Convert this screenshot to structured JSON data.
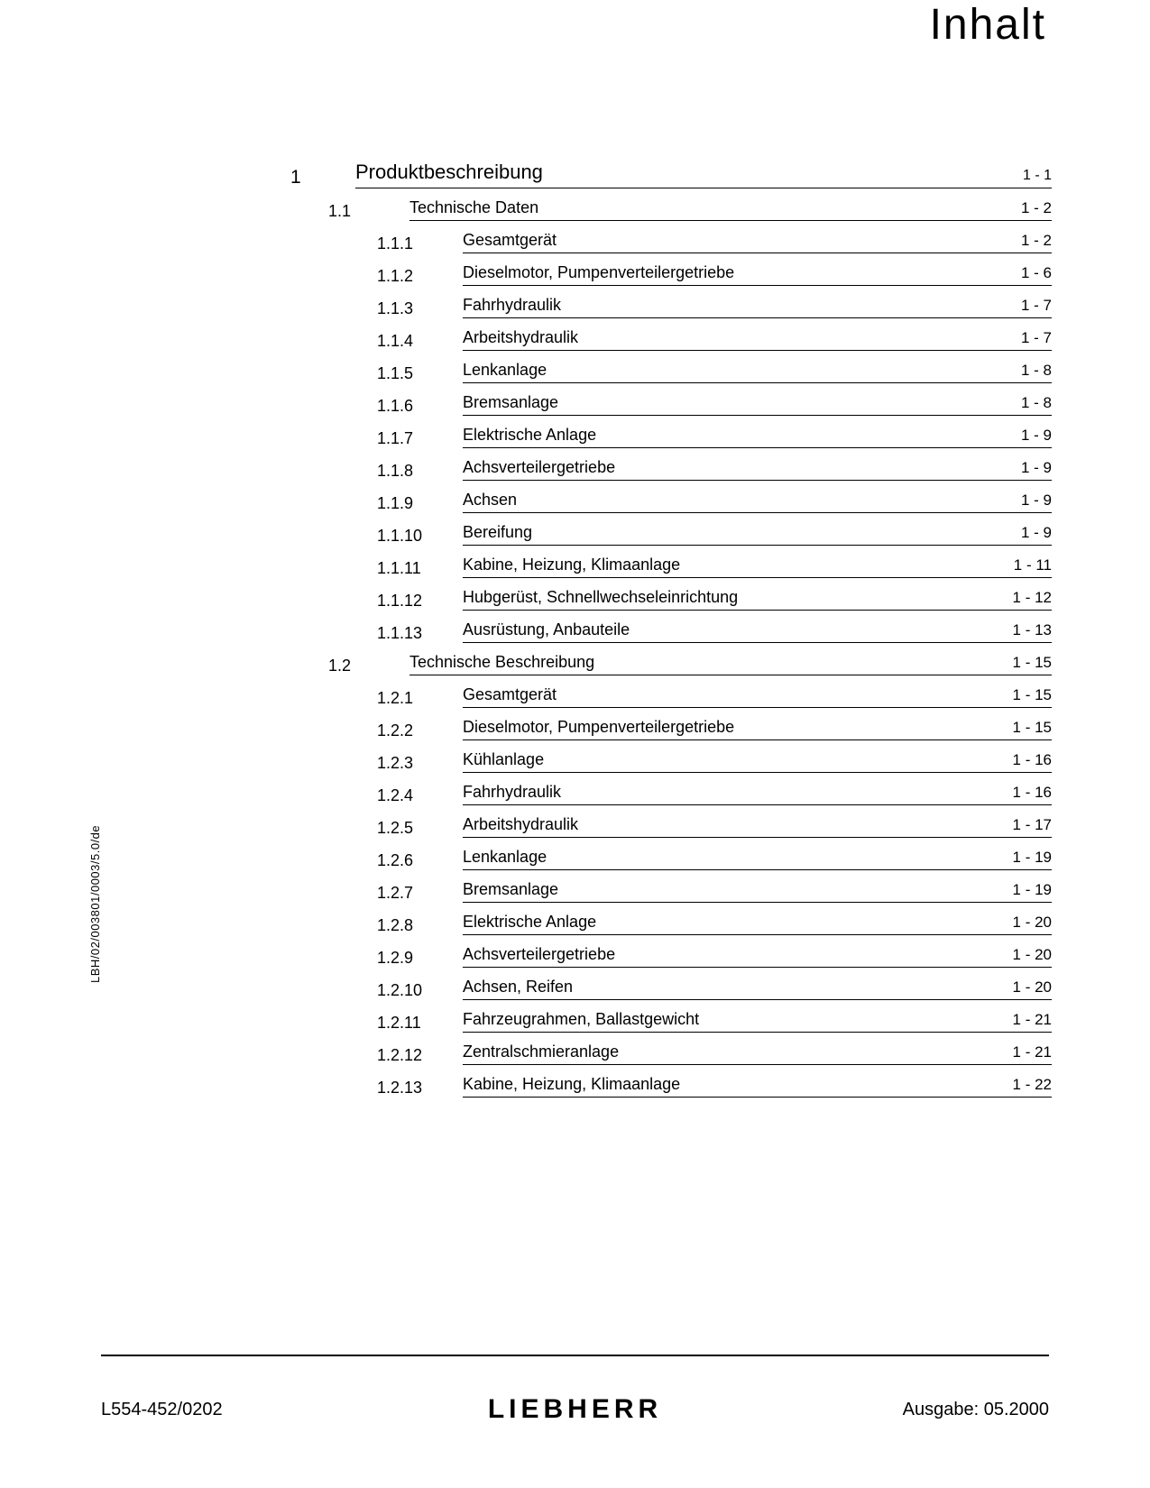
{
  "title": "Inhalt",
  "side_code": "LBH/02/003801/0003/5.0/de",
  "footer": {
    "left": "L554-452/0202",
    "brand": "LIEBHERR",
    "right": "Ausgabe: 05.2000"
  },
  "toc": [
    {
      "level": 1,
      "num": "1",
      "label": "Produktbeschreibung",
      "page": "1 - 1"
    },
    {
      "level": 2,
      "num": "1.1",
      "label": "Technische Daten",
      "page": "1 - 2"
    },
    {
      "level": 3,
      "num": "1.1.1",
      "label": "Gesamtgerät",
      "page": "1 - 2"
    },
    {
      "level": 3,
      "num": "1.1.2",
      "label": "Dieselmotor, Pumpenverteilergetriebe",
      "page": "1 - 6"
    },
    {
      "level": 3,
      "num": "1.1.3",
      "label": "Fahrhydraulik",
      "page": "1 - 7"
    },
    {
      "level": 3,
      "num": "1.1.4",
      "label": "Arbeitshydraulik",
      "page": "1 - 7"
    },
    {
      "level": 3,
      "num": "1.1.5",
      "label": "Lenkanlage",
      "page": "1 - 8"
    },
    {
      "level": 3,
      "num": "1.1.6",
      "label": "Bremsanlage",
      "page": "1 - 8"
    },
    {
      "level": 3,
      "num": "1.1.7",
      "label": "Elektrische Anlage",
      "page": "1 - 9"
    },
    {
      "level": 3,
      "num": "1.1.8",
      "label": "Achsverteilergetriebe",
      "page": "1 - 9"
    },
    {
      "level": 3,
      "num": "1.1.9",
      "label": "Achsen",
      "page": "1 - 9"
    },
    {
      "level": 3,
      "num": "1.1.10",
      "label": "Bereifung",
      "page": "1 - 9"
    },
    {
      "level": 3,
      "num": "1.1.11",
      "label": "Kabine, Heizung, Klimaanlage",
      "page": "1 - 11"
    },
    {
      "level": 3,
      "num": "1.1.12",
      "label": "Hubgerüst, Schnellwechseleinrichtung",
      "page": "1 - 12"
    },
    {
      "level": 3,
      "num": "1.1.13",
      "label": "Ausrüstung, Anbauteile",
      "page": "1 - 13"
    },
    {
      "level": 2,
      "num": "1.2",
      "label": "Technische Beschreibung",
      "page": "1 - 15"
    },
    {
      "level": 3,
      "num": "1.2.1",
      "label": "Gesamtgerät",
      "page": "1 - 15"
    },
    {
      "level": 3,
      "num": "1.2.2",
      "label": "Dieselmotor, Pumpenverteilergetriebe",
      "page": "1 - 15"
    },
    {
      "level": 3,
      "num": "1.2.3",
      "label": "Kühlanlage",
      "page": "1 - 16"
    },
    {
      "level": 3,
      "num": "1.2.4",
      "label": "Fahrhydraulik",
      "page": "1 - 16"
    },
    {
      "level": 3,
      "num": "1.2.5",
      "label": "Arbeitshydraulik",
      "page": "1 - 17"
    },
    {
      "level": 3,
      "num": "1.2.6",
      "label": "Lenkanlage",
      "page": "1 - 19"
    },
    {
      "level": 3,
      "num": "1.2.7",
      "label": "Bremsanlage",
      "page": "1 - 19"
    },
    {
      "level": 3,
      "num": "1.2.8",
      "label": "Elektrische Anlage",
      "page": "1 - 20"
    },
    {
      "level": 3,
      "num": "1.2.9",
      "label": "Achsverteilergetriebe",
      "page": "1 - 20"
    },
    {
      "level": 3,
      "num": "1.2.10",
      "label": "Achsen, Reifen",
      "page": "1 - 20"
    },
    {
      "level": 3,
      "num": "1.2.11",
      "label": "Fahrzeugrahmen, Ballastgewicht",
      "page": "1 - 21"
    },
    {
      "level": 3,
      "num": "1.2.12",
      "label": "Zentralschmieranlage",
      "page": "1 - 21"
    },
    {
      "level": 3,
      "num": "1.2.13",
      "label": "Kabine, Heizung, Klimaanlage",
      "page": "1 - 22"
    }
  ]
}
